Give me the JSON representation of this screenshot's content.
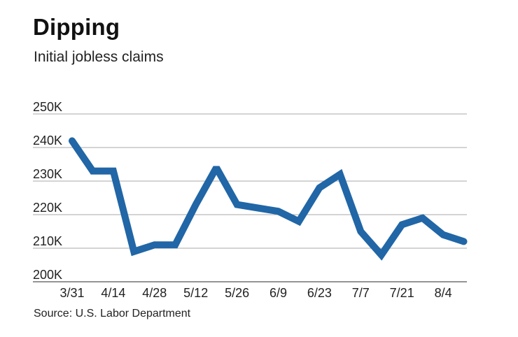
{
  "title": "Dipping",
  "subtitle": "Initial jobless claims",
  "source": "Source: U.S. Labor Department",
  "colors": {
    "line": "#2166a6",
    "grid": "#8c8c8c",
    "axis": "#555555"
  },
  "chart_data": {
    "type": "line",
    "title": "Dipping",
    "subtitle": "Initial jobless claims",
    "xlabel": "",
    "ylabel": "",
    "ylim": [
      200000,
      250000
    ],
    "yticks": [
      200000,
      210000,
      220000,
      230000,
      240000,
      250000
    ],
    "ytick_labels": [
      "200K",
      "210K",
      "220K",
      "230K",
      "240K",
      "250K"
    ],
    "xtick_labels": [
      "3/31",
      "4/14",
      "4/28",
      "5/12",
      "5/26",
      "6/9",
      "6/23",
      "7/7",
      "7/21",
      "8/4"
    ],
    "xtick_positions": [
      0,
      2,
      4,
      6,
      8,
      10,
      12,
      14,
      16,
      18
    ],
    "grid": true,
    "legend": "none",
    "series": [
      {
        "x": [
          "3/31",
          "4/7",
          "4/14",
          "4/21",
          "4/28",
          "5/5",
          "5/12",
          "5/19",
          "5/26",
          "6/2",
          "6/9",
          "6/16",
          "6/23",
          "6/30",
          "7/7",
          "7/14",
          "7/21",
          "7/28",
          "8/4",
          "8/11"
        ],
        "values": [
          242000,
          233000,
          233000,
          209000,
          211000,
          211000,
          223000,
          234000,
          223000,
          222000,
          221000,
          218000,
          228000,
          232000,
          215000,
          208000,
          217000,
          219000,
          214000,
          212000
        ]
      }
    ]
  }
}
